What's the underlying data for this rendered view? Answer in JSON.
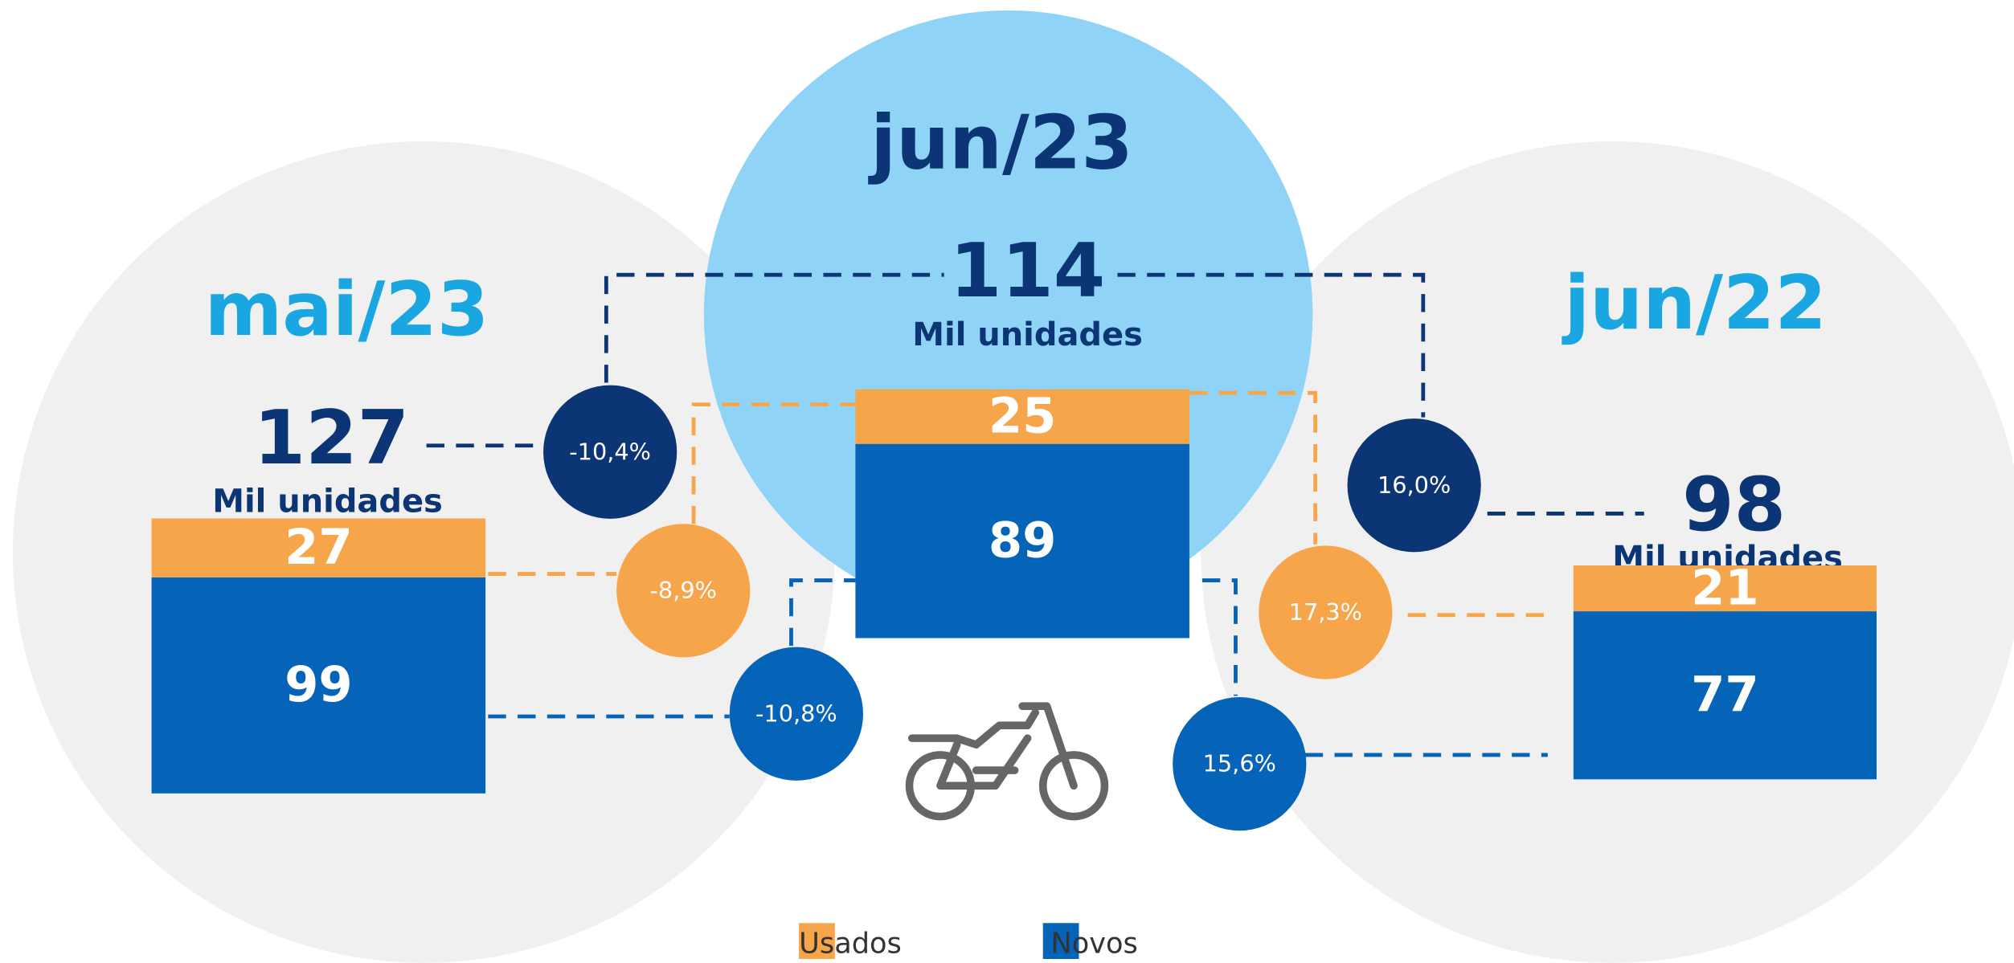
{
  "chart_data": {
    "type": "bar",
    "stacked": true,
    "categories": [
      "mai/23",
      "jun/23",
      "jun/22"
    ],
    "totals": [
      127,
      114,
      98
    ],
    "unit_label": "Mil unidades",
    "series": [
      {
        "name": "Novos",
        "color": "#0563b8",
        "values": [
          99,
          89,
          77
        ]
      },
      {
        "name": "Usados",
        "color": "#f7a54a",
        "values": [
          27,
          25,
          21
        ]
      }
    ],
    "changes": {
      "total": [
        -10.4,
        16.0
      ],
      "total_labels": [
        "-10,4%",
        "16,0%"
      ],
      "total_color": "#0c3575",
      "usados": [
        -8.9,
        17.3
      ],
      "usados_labels": [
        "-8,9%",
        "17,3%"
      ],
      "usados_color": "#f7a54a",
      "novos": [
        -10.8,
        15.6
      ],
      "novos_labels": [
        "-10,8%",
        "15,6%"
      ],
      "novos_color": "#0563b8"
    },
    "legend": [
      "Usados",
      "Novos"
    ]
  }
}
